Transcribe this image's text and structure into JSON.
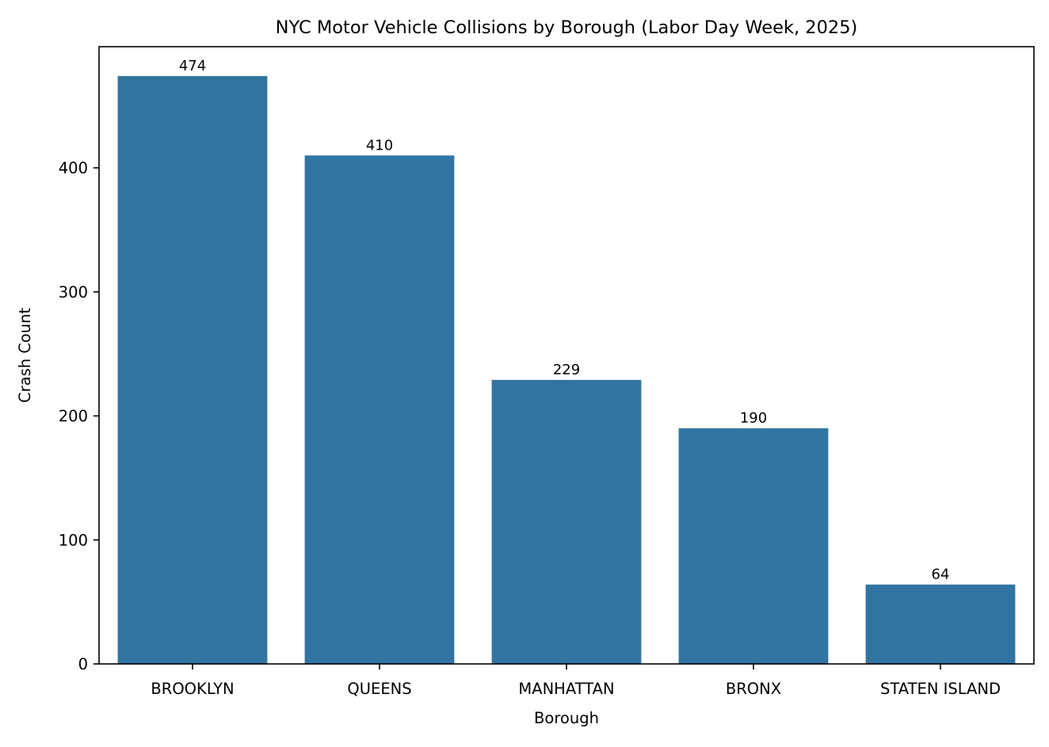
{
  "chart_data": {
    "type": "bar",
    "title": "NYC Motor Vehicle Collisions by Borough (Labor Day Week, 2025)",
    "xlabel": "Borough",
    "ylabel": "Crash Count",
    "categories": [
      "BROOKLYN",
      "QUEENS",
      "MANHATTAN",
      "BRONX",
      "STATEN ISLAND"
    ],
    "values": [
      474,
      410,
      229,
      190,
      64
    ],
    "data_labels": [
      "474",
      "410",
      "229",
      "190",
      "64"
    ],
    "ylim": [
      0,
      497.7
    ],
    "yticks": [
      0,
      100,
      200,
      300,
      400
    ],
    "grid": false,
    "legend": "none",
    "bar_color": "#3274a1"
  }
}
